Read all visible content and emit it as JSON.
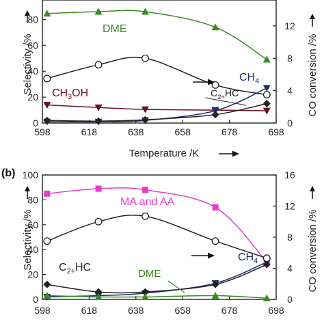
{
  "colors": {
    "green": "#3a8a22",
    "pink": "#e83cc8",
    "navy": "#1f2a6a",
    "maroon": "#6a1020",
    "black": "#222222"
  },
  "chart_data": [
    {
      "type": "line",
      "panel_label": "",
      "x": [
        600,
        622,
        642,
        672,
        694
      ],
      "xlim": [
        598,
        698
      ],
      "x_ticks": [
        "598",
        "618",
        "638",
        "658",
        "678",
        "698"
      ],
      "xlabel": "Temperature /K",
      "ylabel": "Selectivity /%",
      "ylim": [
        0,
        95
      ],
      "y_ticks": [
        "0",
        "20",
        "40",
        "60",
        "80"
      ],
      "y2label": "CO conversion /%",
      "y2lim": [
        0,
        15.2
      ],
      "y2_ticks": [
        "0",
        "4",
        "8",
        "12"
      ],
      "series": [
        {
          "name": "DME",
          "axis": "left",
          "marker": "triangle",
          "color": "#3a8a22",
          "values": [
            84.5,
            86,
            86,
            74,
            49
          ]
        },
        {
          "name": "CH3OH",
          "axis": "left",
          "marker": "triangle-down",
          "color": "#6a1020",
          "values": [
            14,
            12,
            10.5,
            10,
            9.5
          ]
        },
        {
          "name": "CH4",
          "axis": "left",
          "marker": "triangle-down",
          "color": "#1f2a6a",
          "values": [
            1,
            1,
            2,
            9.5,
            27
          ]
        },
        {
          "name": "C2+HC",
          "axis": "left",
          "marker": "diamond",
          "color": "#222222",
          "values": [
            2,
            1.5,
            2.5,
            6.5,
            15
          ]
        },
        {
          "name": "",
          "axis": "right",
          "marker": "circle-open",
          "color": "#222222",
          "values": [
            5.5,
            7.2,
            8.0,
            4.7,
            3.5
          ]
        }
      ],
      "labels": [
        {
          "text": "DME",
          "color": "#3a8a22"
        },
        {
          "text": "CH",
          "sub": "4",
          "color": "#1f2a6a"
        },
        {
          "text": "CH",
          "sub": "3",
          "tail": "OH",
          "color": "#6a1020"
        },
        {
          "text": "C",
          "sub": "2+",
          "tail": "HC",
          "color": "#222222"
        }
      ]
    },
    {
      "type": "line",
      "panel_label": "(b)",
      "x": [
        600,
        622,
        642,
        672,
        694
      ],
      "xlim": [
        598,
        698
      ],
      "x_ticks": [
        "598",
        "618",
        "638",
        "658",
        "678",
        "698"
      ],
      "xlabel": "Temperature /K",
      "ylabel": "Selectivity /%",
      "ylim": [
        0,
        100
      ],
      "y_ticks": [
        "0",
        "20",
        "40",
        "60",
        "80",
        "100"
      ],
      "y2label": "CO conversion /%",
      "y2lim": [
        0,
        16
      ],
      "y2_ticks": [
        "0",
        "4",
        "8",
        "12",
        "16"
      ],
      "series": [
        {
          "name": "MA and AA",
          "axis": "left",
          "marker": "square",
          "color": "#e83cc8",
          "values": [
            85,
            89,
            88,
            74,
            30
          ]
        },
        {
          "name": "CH4",
          "axis": "left",
          "marker": "triangle-down",
          "color": "#1f2a6a",
          "values": [
            2,
            3,
            5,
            13,
            30
          ]
        },
        {
          "name": "C2+HC",
          "axis": "left",
          "marker": "diamond",
          "color": "#222222",
          "values": [
            12,
            6,
            6,
            12,
            28
          ]
        },
        {
          "name": "DME",
          "axis": "left",
          "marker": "triangle",
          "color": "#3a8a22",
          "values": [
            3,
            2,
            2,
            3,
            1
          ]
        },
        {
          "name": "",
          "axis": "right",
          "marker": "circle-open",
          "color": "#222222",
          "values": [
            7.5,
            10,
            10.7,
            7.5,
            5.3
          ]
        }
      ],
      "labels": [
        {
          "text": "MA and AA",
          "color": "#e83cc8"
        },
        {
          "text": "CH",
          "sub": "4",
          "color": "#1f2a6a"
        },
        {
          "text": "C",
          "sub": "2+",
          "tail": "HC",
          "color": "#222222"
        },
        {
          "text": "DME",
          "color": "#3a8a22"
        }
      ]
    }
  ]
}
